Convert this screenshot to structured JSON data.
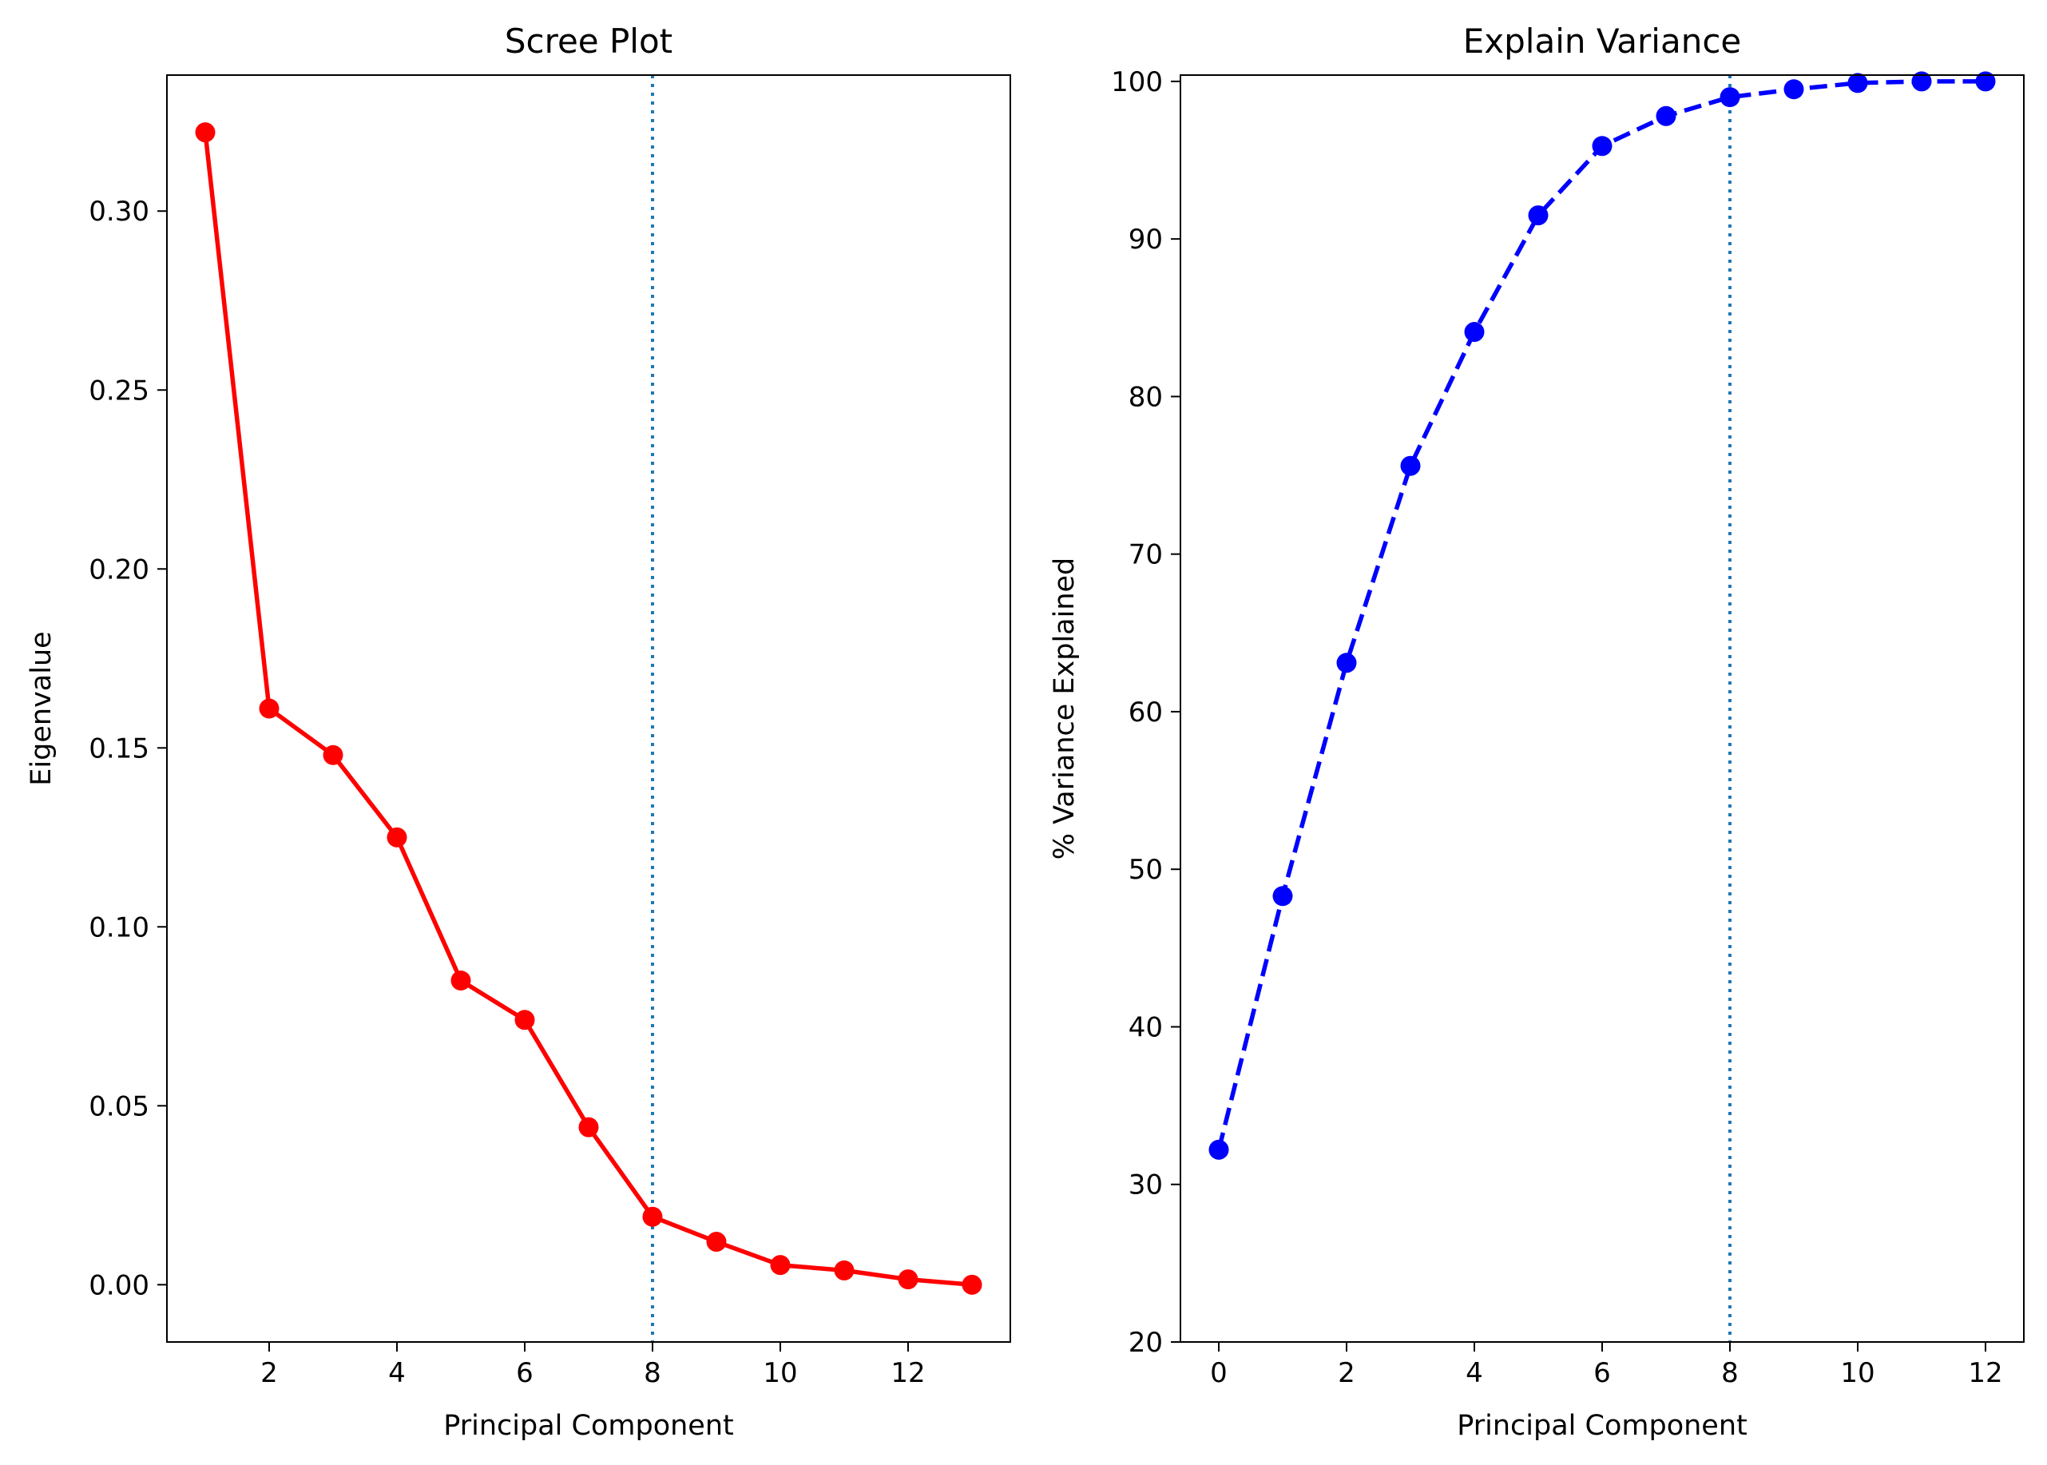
{
  "chart_data": [
    {
      "type": "line",
      "title": "Scree Plot",
      "xlabel": "Principal Component",
      "ylabel": "Eigenvalue",
      "xlim": [
        0.4,
        13.6
      ],
      "ylim": [
        -0.016,
        0.338
      ],
      "xticks": [
        2,
        4,
        6,
        8,
        10,
        12
      ],
      "xtick_labels": [
        "2",
        "4",
        "6",
        "8",
        "10",
        "12"
      ],
      "yticks": [
        0.0,
        0.05,
        0.1,
        0.15,
        0.2,
        0.25,
        0.3
      ],
      "ytick_labels": [
        "0.00",
        "0.05",
        "0.10",
        "0.15",
        "0.20",
        "0.25",
        "0.30"
      ],
      "series": [
        {
          "x": [
            1,
            2,
            3,
            4,
            5,
            6,
            7,
            8,
            9,
            10,
            11,
            12,
            13
          ],
          "values": [
            0.322,
            0.161,
            0.148,
            0.125,
            0.085,
            0.074,
            0.044,
            0.019,
            0.012,
            0.0055,
            0.004,
            0.0015,
            0.0
          ],
          "color": "#ff0000",
          "line_style": "solid",
          "marker": "circle"
        }
      ],
      "vline": {
        "x": 8,
        "color": "#1f77b4",
        "line_style": "dotted"
      },
      "grid": false,
      "legend": "none"
    },
    {
      "type": "line",
      "title": "Explain Variance",
      "xlabel": "Principal Component",
      "ylabel": "% Variance Explained",
      "xlim": [
        -0.6,
        12.6
      ],
      "ylim": [
        20,
        100.4
      ],
      "xticks": [
        0,
        2,
        4,
        6,
        8,
        10,
        12
      ],
      "xtick_labels": [
        "0",
        "2",
        "4",
        "6",
        "8",
        "10",
        "12"
      ],
      "yticks": [
        20,
        30,
        40,
        50,
        60,
        70,
        80,
        90,
        100
      ],
      "ytick_labels": [
        "20",
        "30",
        "40",
        "50",
        "60",
        "70",
        "80",
        "90",
        "100"
      ],
      "series": [
        {
          "x": [
            0,
            1,
            2,
            3,
            4,
            5,
            6,
            7,
            8,
            9,
            10,
            11,
            12
          ],
          "values": [
            32.2,
            48.3,
            63.1,
            75.6,
            84.1,
            91.5,
            95.9,
            97.8,
            99.0,
            99.5,
            99.9,
            100.0,
            100.0
          ],
          "color": "#0000ff",
          "line_style": "dashed",
          "marker": "circle"
        }
      ],
      "vline": {
        "x": 8,
        "color": "#1f77b4",
        "line_style": "dotted"
      },
      "grid": false,
      "legend": "none"
    }
  ]
}
